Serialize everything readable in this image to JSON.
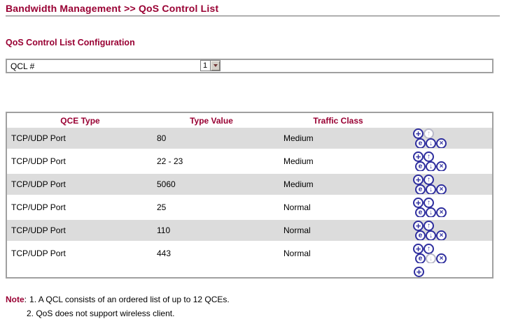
{
  "page": {
    "title": "Bandwidth Management >> QoS Control List"
  },
  "section": {
    "heading": "QoS Control List Configuration"
  },
  "qcl_selector": {
    "label": "QCL #",
    "value": "1"
  },
  "table": {
    "headers": [
      "QCE Type",
      "Type Value",
      "Traffic Class"
    ],
    "rows": [
      {
        "qce_type": "TCP/UDP Port",
        "type_value": "80",
        "traffic_class": "Medium",
        "can_move_up": false,
        "can_move_down": true
      },
      {
        "qce_type": "TCP/UDP Port",
        "type_value": "22 - 23",
        "traffic_class": "Medium",
        "can_move_up": true,
        "can_move_down": true
      },
      {
        "qce_type": "TCP/UDP Port",
        "type_value": "5060",
        "traffic_class": "Medium",
        "can_move_up": true,
        "can_move_down": true
      },
      {
        "qce_type": "TCP/UDP Port",
        "type_value": "25",
        "traffic_class": "Normal",
        "can_move_up": true,
        "can_move_down": true
      },
      {
        "qce_type": "TCP/UDP Port",
        "type_value": "110",
        "traffic_class": "Normal",
        "can_move_up": true,
        "can_move_down": true
      },
      {
        "qce_type": "TCP/UDP Port",
        "type_value": "443",
        "traffic_class": "Normal",
        "can_move_up": true,
        "can_move_down": false
      }
    ],
    "row_icons": {
      "add": "+",
      "move_up": "↑",
      "edit": "e",
      "move_down": "↓",
      "delete": "×"
    },
    "footer_add_icon": "+"
  },
  "notes": {
    "label": "Note",
    "separator": ":",
    "items": [
      "1. A QCL consists of an ordered list of up to 12 QCEs.",
      "2. QoS does not support wireless client."
    ]
  },
  "colors": {
    "heading_red": "#990033",
    "icon_blue": "#2e2e9e",
    "icon_disabled": "#b9b9c9",
    "row_alt_gray": "#dcdcdc",
    "table_border": "#a0a0a0"
  }
}
